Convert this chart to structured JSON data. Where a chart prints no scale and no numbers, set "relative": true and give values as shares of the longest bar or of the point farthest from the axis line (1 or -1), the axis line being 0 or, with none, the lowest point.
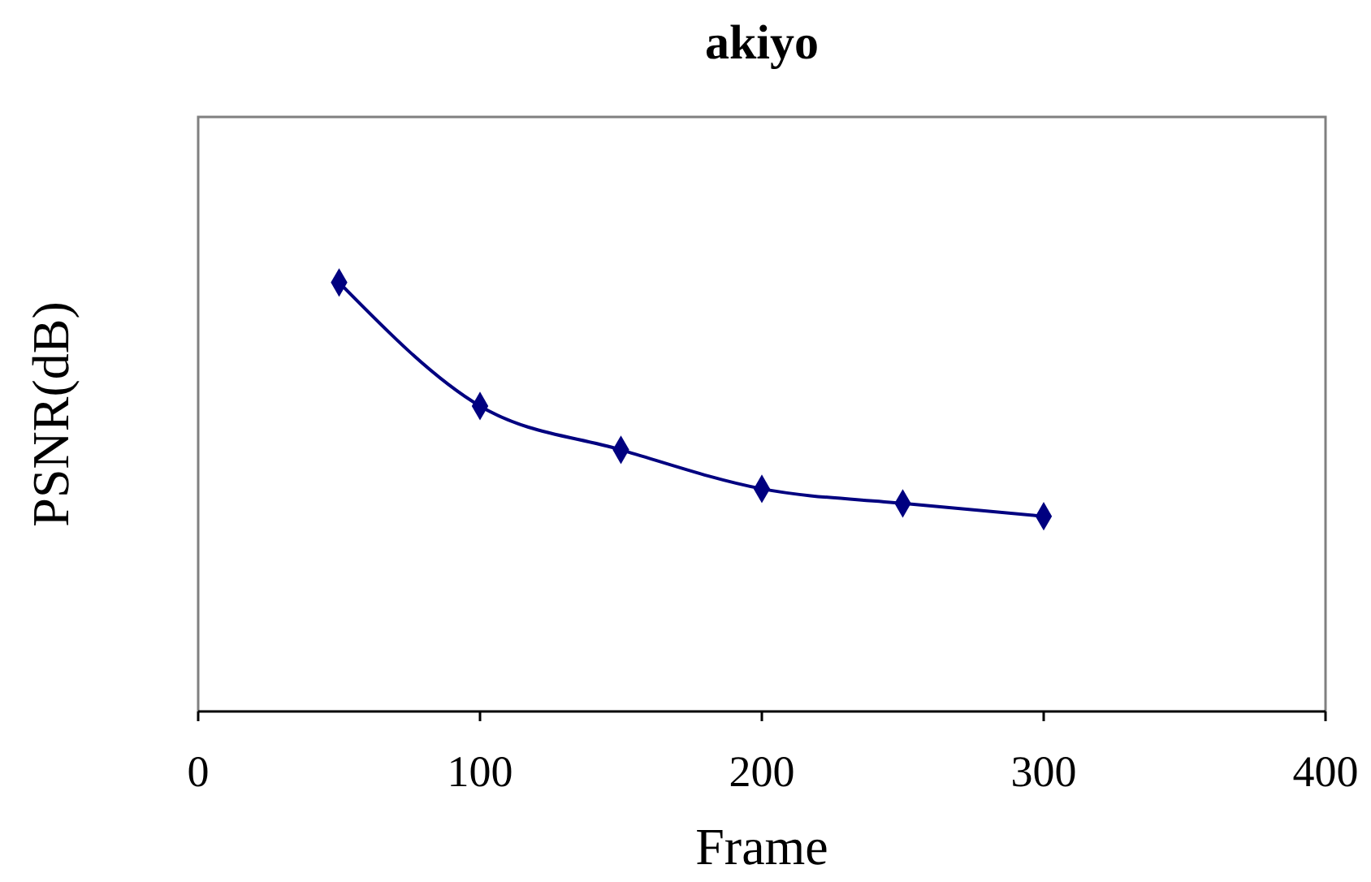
{
  "chart_data": {
    "type": "line",
    "title": "akiyo",
    "xlabel": "Frame",
    "ylabel": "PSNR(dB)",
    "relative": true,
    "x": [
      50,
      100,
      150,
      200,
      250,
      300
    ],
    "series": [
      {
        "color": "#000080",
        "values": [
          1,
          0.712,
          0.61,
          0.519,
          0.485,
          0.455
        ]
      }
    ],
    "xlim": [
      0,
      400
    ],
    "xticks": [
      0,
      100,
      200,
      300,
      400
    ],
    "marker": "diamond",
    "line_style": "solid"
  }
}
